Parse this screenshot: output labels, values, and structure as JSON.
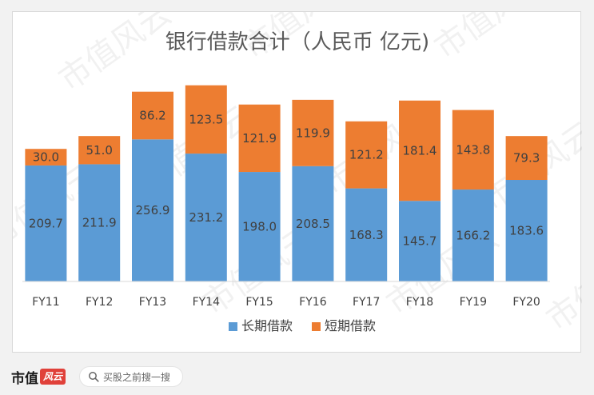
{
  "chart_data": {
    "type": "stacked-bar",
    "title": "银行借款合计（人民币 亿元)",
    "categories": [
      "FY11",
      "FY12",
      "FY13",
      "FY14",
      "FY15",
      "FY16",
      "FY17",
      "FY18",
      "FY19",
      "FY20"
    ],
    "series": [
      {
        "name": "长期借款",
        "color": "#5b9bd5",
        "values": [
          209.7,
          211.9,
          256.9,
          231.2,
          198.0,
          208.5,
          168.3,
          145.7,
          166.2,
          183.6
        ]
      },
      {
        "name": "短期借款",
        "color": "#ed7d31",
        "values": [
          30.0,
          51.0,
          86.2,
          123.5,
          121.9,
          119.9,
          121.2,
          181.4,
          143.8,
          79.3
        ]
      }
    ],
    "ylim": [
      0,
      360
    ],
    "legend_position": "bottom",
    "grid": false
  },
  "watermark_text": "市值风云",
  "footer": {
    "brand": "市值",
    "brand_seal": "风云",
    "search_placeholder": "买股之前搜一搜"
  }
}
